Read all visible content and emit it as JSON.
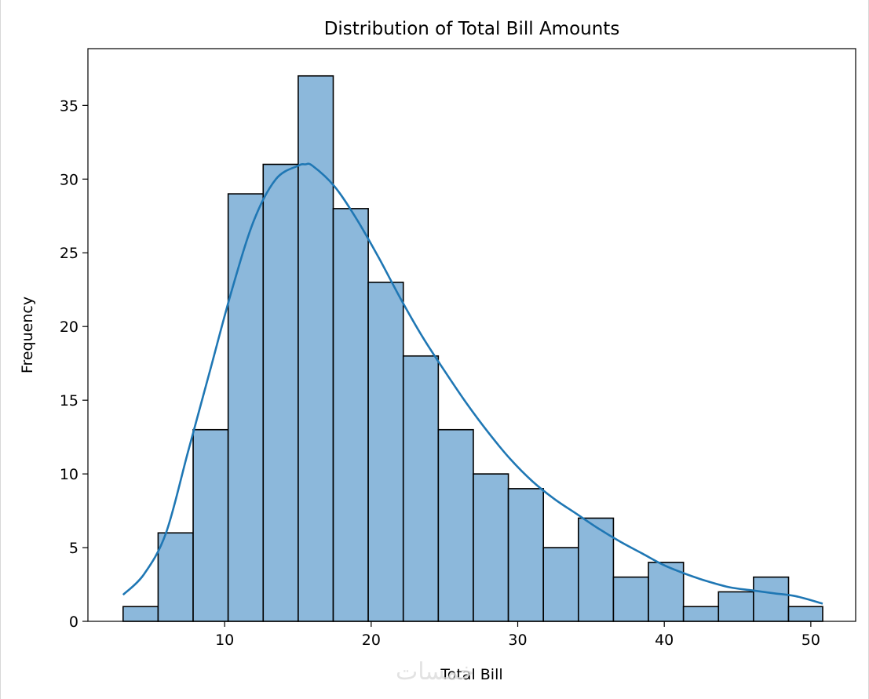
{
  "chart_data": {
    "type": "bar",
    "subtype": "histogram",
    "title": "Distribution of Total Bill Amounts",
    "xlabel": "Total Bill",
    "ylabel": "Frequency",
    "xlim": [
      0.67,
      53.06
    ],
    "ylim": [
      0,
      38.85
    ],
    "x_ticks": [
      10,
      20,
      30,
      40,
      50
    ],
    "y_ticks": [
      0,
      5,
      10,
      15,
      20,
      25,
      30,
      35
    ],
    "bin_edges": [
      3.07,
      5.46,
      7.85,
      10.24,
      12.63,
      15.02,
      17.41,
      19.8,
      22.19,
      24.58,
      26.97,
      29.36,
      31.75,
      34.14,
      36.53,
      38.92,
      41.31,
      43.7,
      46.09,
      48.48,
      50.81
    ],
    "counts": [
      1,
      6,
      13,
      29,
      31,
      37,
      28,
      23,
      18,
      13,
      10,
      9,
      5,
      7,
      3,
      4,
      1,
      2,
      3,
      1
    ],
    "kde": {
      "x": [
        3.07,
        4.5,
        6,
        7.5,
        9,
        10.5,
        12,
        13.5,
        15,
        15.5,
        16,
        17.5,
        19,
        20.5,
        22,
        23.5,
        25,
        26.5,
        28,
        29.5,
        31,
        32.5,
        34,
        35.5,
        37,
        38.5,
        40,
        41.5,
        43,
        44.5,
        46,
        47.5,
        49,
        50.81
      ],
      "y": [
        1.8,
        3.2,
        6.0,
        11.5,
        17.0,
        22.5,
        27.2,
        30.0,
        30.9,
        31.0,
        30.9,
        29.5,
        27.3,
        24.7,
        21.9,
        19.3,
        17.0,
        14.8,
        12.8,
        11.0,
        9.5,
        8.3,
        7.3,
        6.3,
        5.4,
        4.6,
        3.8,
        3.2,
        2.7,
        2.3,
        2.1,
        1.9,
        1.7,
        1.2
      ]
    },
    "bar_fill": "#8cb8db",
    "bar_edge": "#000000",
    "kde_color": "#1f77b4",
    "grid": false,
    "legend": "none"
  },
  "watermark": "خمسات"
}
